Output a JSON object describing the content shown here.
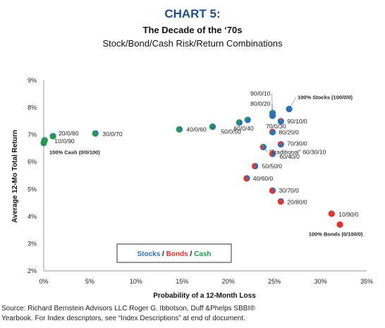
{
  "header": {
    "title": "CHART 5:",
    "subtitle": "The Decade of the ‘70s",
    "subtitle2": "Stock/Bond/Cash Risk/Return Combinations"
  },
  "legend_box": {
    "stocks": "Stocks",
    "sep1": " / ",
    "bonds": "Bonds",
    "sep2": " / ",
    "cash": "Cash"
  },
  "source_line1": "Source: Richard Bernstein Advisors LLC Roger G. Ibbotson, Duff &Phelps SBBI®",
  "source_line2": "Yearbook.  For Index descriptors, see “Index Descriptions” at end of document.",
  "colors": {
    "stocks": "#2e6fb7",
    "bonds": "#e8302a",
    "cash": "#1f9a4b",
    "title": "#1f4e8c"
  },
  "chart_data": {
    "type": "scatter",
    "xlabel": "Probability of a 12-Month Loss",
    "ylabel": "Average 12-Mo Total Return",
    "xlim": [
      0,
      35
    ],
    "ylim": [
      2,
      9
    ],
    "xticks": [
      "0%",
      "5%",
      "10%",
      "15%",
      "20%",
      "25%",
      "30%",
      "35%"
    ],
    "yticks": [
      "2%",
      "3%",
      "4%",
      "5%",
      "6%",
      "7%",
      "8%",
      "9%"
    ],
    "grid": false,
    "points": [
      {
        "label": "100% Cash (0/0/100)",
        "x": 0.0,
        "y": 6.7,
        "stocks": 0,
        "bonds": 0,
        "cash": 100
      },
      {
        "label": "10/0/90",
        "x": 0.1,
        "y": 6.8,
        "stocks": 10,
        "bonds": 0,
        "cash": 90
      },
      {
        "label": "20/0/80",
        "x": 1.0,
        "y": 6.95,
        "stocks": 20,
        "bonds": 0,
        "cash": 80
      },
      {
        "label": "30/0/70",
        "x": 5.6,
        "y": 7.05,
        "stocks": 30,
        "bonds": 0,
        "cash": 70
      },
      {
        "label": "40/0/60",
        "x": 14.7,
        "y": 7.2,
        "stocks": 40,
        "bonds": 0,
        "cash": 60
      },
      {
        "label": "50/0/50",
        "x": 18.3,
        "y": 7.3,
        "stocks": 50,
        "bonds": 0,
        "cash": 50
      },
      {
        "label": "60/0/40",
        "x": 21.2,
        "y": 7.45,
        "stocks": 60,
        "bonds": 0,
        "cash": 40
      },
      {
        "label": "70/0/30",
        "x": 22.1,
        "y": 7.55,
        "stocks": 70,
        "bonds": 0,
        "cash": 30
      },
      {
        "label": "80/0/20",
        "x": 24.8,
        "y": 7.7,
        "stocks": 80,
        "bonds": 0,
        "cash": 20
      },
      {
        "label": "90/0/10",
        "x": 24.8,
        "y": 7.8,
        "stocks": 90,
        "bonds": 0,
        "cash": 10
      },
      {
        "label": "100% Stocks (100/0/0)",
        "x": 26.6,
        "y": 7.95,
        "stocks": 100,
        "bonds": 0,
        "cash": 0
      },
      {
        "label": "90/10/0",
        "x": 25.7,
        "y": 7.5,
        "stocks": 90,
        "bonds": 10,
        "cash": 0
      },
      {
        "label": "80/20/0",
        "x": 24.8,
        "y": 7.1,
        "stocks": 80,
        "bonds": 20,
        "cash": 0
      },
      {
        "label": "70/30/0",
        "x": 25.7,
        "y": 6.65,
        "stocks": 70,
        "bonds": 30,
        "cash": 0
      },
      {
        "label": "\"Traditional\" 60/30/10",
        "x": 23.8,
        "y": 6.55,
        "stocks": 60,
        "bonds": 30,
        "cash": 10
      },
      {
        "label": "60/40/0",
        "x": 24.8,
        "y": 6.3,
        "stocks": 60,
        "bonds": 40,
        "cash": 0
      },
      {
        "label": "50/50/0",
        "x": 22.9,
        "y": 5.85,
        "stocks": 50,
        "bonds": 50,
        "cash": 0
      },
      {
        "label": "40/60/0",
        "x": 22.0,
        "y": 5.4,
        "stocks": 40,
        "bonds": 60,
        "cash": 0
      },
      {
        "label": "30/70/0",
        "x": 24.8,
        "y": 4.95,
        "stocks": 30,
        "bonds": 70,
        "cash": 0
      },
      {
        "label": "20/80/0",
        "x": 25.7,
        "y": 4.55,
        "stocks": 20,
        "bonds": 80,
        "cash": 0
      },
      {
        "label": "10/90/0",
        "x": 31.2,
        "y": 4.1,
        "stocks": 10,
        "bonds": 90,
        "cash": 0
      },
      {
        "label": "100% Bonds (0/100/0)",
        "x": 32.1,
        "y": 3.7,
        "stocks": 0,
        "bonds": 100,
        "cash": 0
      }
    ]
  }
}
